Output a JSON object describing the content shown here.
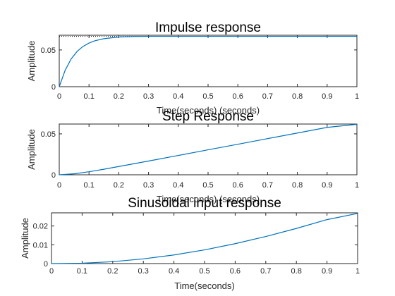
{
  "chart_data": [
    {
      "type": "line",
      "title": "Impulse response",
      "xlabel": "Time(seconds) (seconds)",
      "ylabel": "Amplitude",
      "xlim": [
        0,
        1
      ],
      "ylim": [
        0,
        0.07
      ],
      "xticks": [
        "0",
        "0.1",
        "0.2",
        "0.3",
        "0.4",
        "0.5",
        "0.6",
        "0.7",
        "0.8",
        "0.9",
        "1"
      ],
      "yticks": [
        {
          "value": 0,
          "label": "0"
        },
        {
          "value": 0.05,
          "label": "0.05"
        }
      ],
      "steady_state": {
        "value": 0.0685,
        "x_end": 0.3
      },
      "x": [
        0,
        0.02,
        0.04,
        0.06,
        0.08,
        0.1,
        0.12,
        0.15,
        0.2,
        0.25,
        0.3,
        0.4,
        0.5,
        0.6,
        0.7,
        0.8,
        0.9,
        1.0
      ],
      "y": [
        0,
        0.0225,
        0.0378,
        0.048,
        0.0548,
        0.0594,
        0.0625,
        0.0653,
        0.0676,
        0.0683,
        0.0685,
        0.0685,
        0.0685,
        0.0685,
        0.0685,
        0.0685,
        0.0685,
        0.0685
      ],
      "color": "#0072bd"
    },
    {
      "type": "line",
      "title": "Step Response",
      "xlabel": "Time(seconds) (seconds)",
      "ylabel": "Amplitude",
      "xlim": [
        0,
        1
      ],
      "ylim": [
        0,
        0.062
      ],
      "xticks": [
        "0",
        "0.1",
        "0.2",
        "0.3",
        "0.4",
        "0.5",
        "0.6",
        "0.7",
        "0.8",
        "0.9",
        "1"
      ],
      "yticks": [
        {
          "value": 0,
          "label": "0"
        },
        {
          "value": 0.05,
          "label": "0.05"
        }
      ],
      "x": [
        0,
        0.05,
        0.1,
        0.15,
        0.2,
        0.3,
        0.4,
        0.5,
        0.6,
        0.7,
        0.8,
        0.9,
        1.0
      ],
      "y": [
        0,
        0.0012,
        0.0037,
        0.0068,
        0.0101,
        0.0168,
        0.0236,
        0.0305,
        0.0373,
        0.0442,
        0.051,
        0.0579,
        0.0617
      ],
      "color": "#0072bd"
    },
    {
      "type": "line",
      "title": "Sinusoidal input response",
      "xlabel": "Time(seconds)",
      "ylabel": "Amplitude",
      "xlim": [
        0,
        1
      ],
      "ylim": [
        0,
        0.027
      ],
      "xticks": [
        "0",
        "0.1",
        "0.2",
        "0.3",
        "0.4",
        "0.5",
        "0.6",
        "0.7",
        "0.8",
        "0.9",
        "1"
      ],
      "yticks": [
        {
          "value": 0,
          "label": "0"
        },
        {
          "value": 0.01,
          "label": "0.01"
        },
        {
          "value": 0.02,
          "label": "0.02"
        }
      ],
      "x": [
        0,
        0.1,
        0.2,
        0.3,
        0.4,
        0.5,
        0.6,
        0.7,
        0.8,
        0.9,
        1.0
      ],
      "y": [
        0,
        0.0002,
        0.001,
        0.0025,
        0.0046,
        0.0073,
        0.0106,
        0.0144,
        0.0187,
        0.0234,
        0.0267
      ],
      "color": "#0072bd"
    }
  ]
}
